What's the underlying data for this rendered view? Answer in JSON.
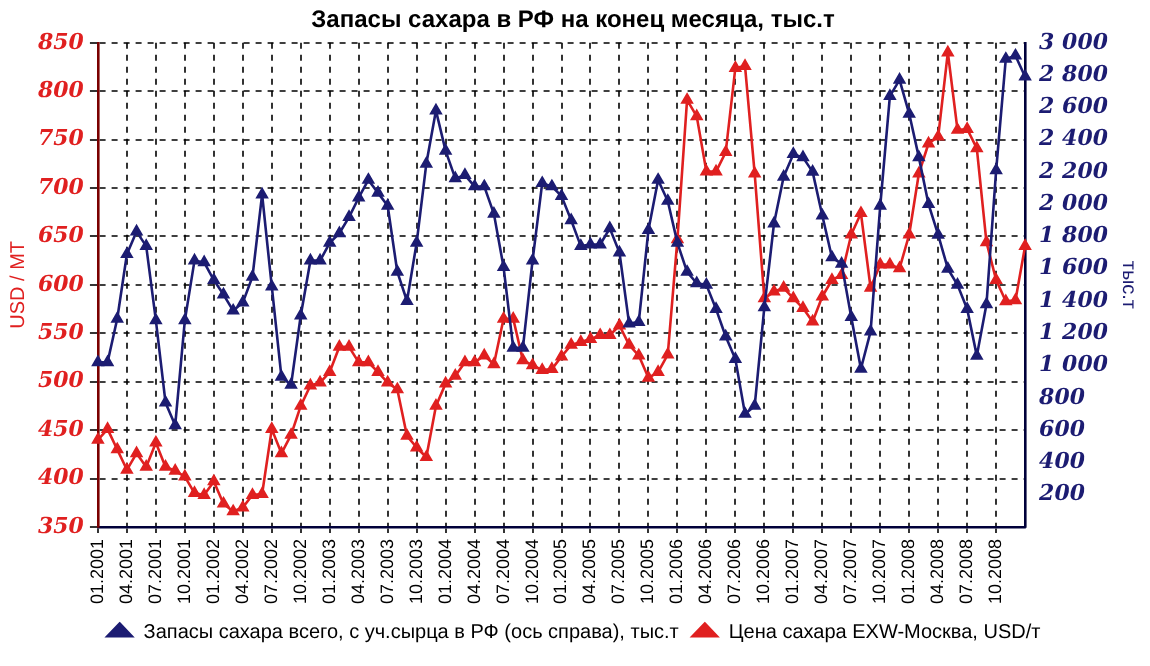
{
  "chart_data": {
    "type": "line",
    "title": "Запасы сахара в РФ на конец месяца, тыс.т",
    "ylabel": "USD / MT",
    "y2label": "тыс.т",
    "categories": [
      "01.2001",
      null,
      null,
      "04.2001",
      null,
      null,
      "07.2001",
      null,
      null,
      "10.2001",
      null,
      null,
      "01.2002",
      null,
      null,
      "04.2002",
      null,
      null,
      "07.2002",
      null,
      null,
      "10.2002",
      null,
      null,
      "01.2003",
      null,
      null,
      "04.2003",
      null,
      null,
      "07.2003",
      null,
      null,
      "10.2003",
      null,
      null,
      "01.2004",
      null,
      null,
      "04.2004",
      null,
      null,
      "07.2004",
      null,
      null,
      "10.2004",
      null,
      null,
      "01.2005",
      null,
      null,
      "04.2005",
      null,
      null,
      "07.2005",
      null,
      null,
      "10.2005",
      null,
      null,
      "01.2006",
      null,
      null,
      "04.2006",
      null,
      null,
      "07.2006",
      null,
      null,
      "10.2006",
      null,
      null,
      "01.2007",
      null,
      null,
      "04.2007",
      null,
      null,
      "07.2007",
      null,
      null,
      "10.2007",
      null,
      null,
      "01.2008",
      null,
      null,
      "04.2008",
      null,
      null,
      "07.2008",
      null,
      null,
      "10.2008",
      null,
      null,
      null
    ],
    "series": [
      {
        "name": "Запасы сахара всего, с уч.сырца в РФ (ось справа), тыс.т",
        "color": "#1c1c72",
        "axis": "y2",
        "values": [
          1020,
          1020,
          1290,
          1690,
          1830,
          1740,
          1280,
          770,
          630,
          1280,
          1650,
          1640,
          1530,
          1440,
          1340,
          1390,
          1550,
          2060,
          1490,
          930,
          880,
          1310,
          1650,
          1650,
          1760,
          1820,
          1920,
          2040,
          2150,
          2070,
          1990,
          1580,
          1400,
          1760,
          2250,
          2580,
          2330,
          2160,
          2180,
          2110,
          2110,
          1940,
          1610,
          1110,
          1110,
          1650,
          2130,
          2110,
          2050,
          1900,
          1740,
          1750,
          1750,
          1850,
          1700,
          1260,
          1270,
          1840,
          2150,
          2020,
          1760,
          1580,
          1510,
          1500,
          1350,
          1180,
          1040,
          700,
          750,
          1360,
          1880,
          2170,
          2310,
          2290,
          2200,
          1930,
          1670,
          1630,
          1300,
          980,
          1210,
          1990,
          2670,
          2770,
          2560,
          2290,
          2000,
          1810,
          1600,
          1500,
          1350,
          1060,
          1380,
          2210,
          2900,
          2920,
          2790
        ]
      },
      {
        "name": "Цена сахара EXW-Москва, USD/т",
        "color": "#e02020",
        "values": [
          440,
          451,
          430,
          409,
          426,
          412,
          437,
          412,
          408,
          402,
          385,
          383,
          397,
          374,
          366,
          370,
          383,
          384,
          451,
          426,
          445,
          475,
          496,
          499,
          510,
          536,
          536,
          520,
          520,
          510,
          499,
          492,
          444,
          432,
          422,
          475,
          498,
          506,
          520,
          520,
          527,
          518,
          565,
          565,
          522,
          517,
          512,
          513,
          526,
          538,
          541,
          544,
          548,
          548,
          558,
          538,
          527,
          504,
          510,
          528,
          647,
          791,
          774,
          717,
          717,
          737,
          824,
          826,
          715,
          586,
          593,
          597,
          586,
          576,
          562,
          588,
          605,
          610,
          652,
          674,
          597,
          621,
          621,
          617,
          652,
          715,
          746,
          753,
          840,
          760,
          761,
          741,
          644,
          605,
          583,
          584,
          640
        ]
      }
    ],
    "ylim": [
      350,
      850
    ],
    "yticks": [
      350,
      400,
      450,
      500,
      550,
      600,
      650,
      700,
      750,
      800,
      850
    ],
    "y2lim": [
      0,
      3000
    ],
    "y2ticks": [
      {
        "value": 0,
        "label": null
      },
      200,
      400,
      600,
      800,
      {
        "value": 1000,
        "label": "1 000"
      },
      {
        "value": 1200,
        "label": "1 200"
      },
      {
        "value": 1400,
        "label": "1 400"
      },
      {
        "value": 1600,
        "label": "1 600"
      },
      {
        "value": 1800,
        "label": "1 800"
      },
      {
        "value": 2000,
        "label": "2 000"
      },
      {
        "value": 2200,
        "label": "2 200"
      },
      {
        "value": 2400,
        "label": "2 400"
      },
      {
        "value": 2600,
        "label": "2 600"
      },
      {
        "value": 2800,
        "label": "2 800"
      },
      {
        "value": 3000,
        "label": "3 000"
      }
    ],
    "grid": true,
    "legend": "bottom",
    "marker": "triangle"
  }
}
